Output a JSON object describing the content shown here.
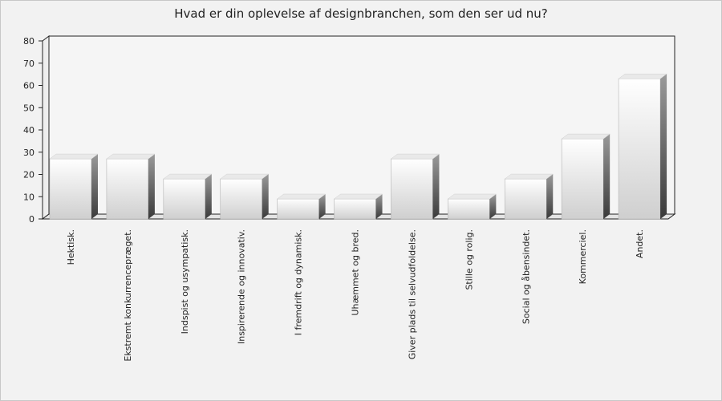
{
  "chart_data": {
    "type": "bar",
    "title": "Hvad er din oplevelse af designbranchen, som den ser ud nu?",
    "categories": [
      "Hektisk.",
      "Ekstremt konkurrencepræget.",
      "Indspist og usympatisk.",
      "Inspirerende og innovativ.",
      "I fremdrift og dynamisk.",
      "Uhæmmet og bred.",
      "Giver plads til selvudfoldelse.",
      "Stille og rolig.",
      "Social og åbensindet.",
      "Kommerciel.",
      "Andet."
    ],
    "values": [
      27,
      27,
      18,
      18,
      9,
      9,
      27,
      9,
      18,
      36,
      63
    ],
    "ylim": [
      0,
      80
    ],
    "yticks": [
      0,
      10,
      20,
      30,
      40,
      50,
      60,
      70,
      80
    ],
    "xlabel": "",
    "ylabel": "",
    "grid": false,
    "legend": "none"
  }
}
